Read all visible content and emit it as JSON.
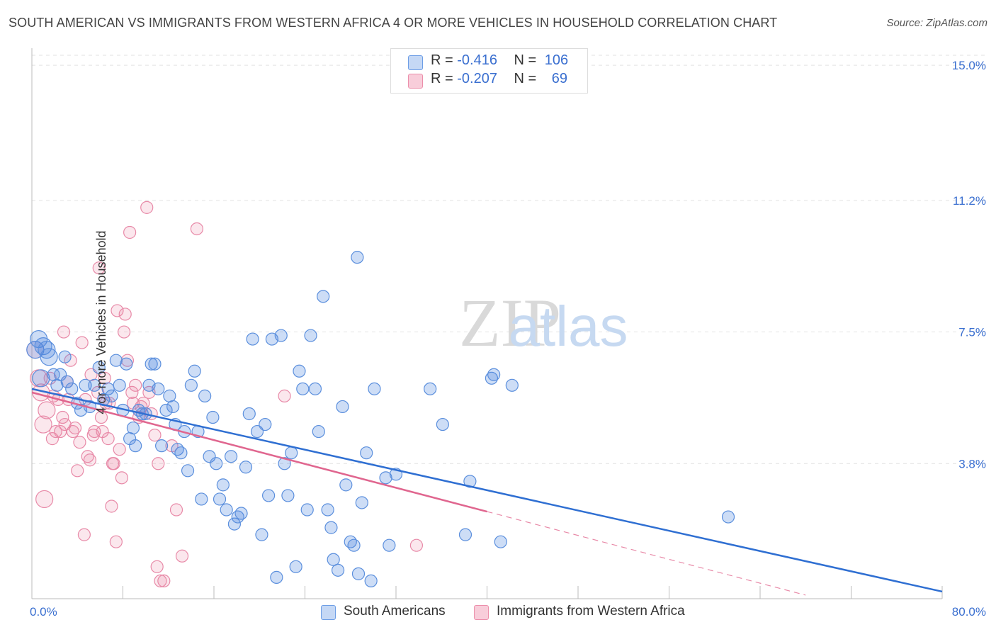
{
  "title": "SOUTH AMERICAN VS IMMIGRANTS FROM WESTERN AFRICA 4 OR MORE VEHICLES IN HOUSEHOLD CORRELATION CHART",
  "source": "Source: ZipAtlas.com",
  "legend": {
    "row1": {
      "r_label": "R =",
      "r_value": "-0.416",
      "n_label": "N =",
      "n_value": "106"
    },
    "row2": {
      "r_label": "R =",
      "r_value": "-0.207",
      "n_label": "N =",
      "n_value": "69"
    }
  },
  "colors": {
    "south_americans": "#4a86e0",
    "western_africa": "#e8799c",
    "accent_text": "#3a6fd0"
  },
  "chart_data": {
    "type": "scatter",
    "title": "SOUTH AMERICAN VS IMMIGRANTS FROM WESTERN AFRICA 4 OR MORE VEHICLES IN HOUSEHOLD CORRELATION CHART",
    "xlabel": "",
    "ylabel": "4 or more Vehicles in Household",
    "xlim": [
      0,
      80
    ],
    "ylim": [
      0,
      15.4
    ],
    "x_tick_labels": [
      "0.0%",
      "80.0%"
    ],
    "y_ticks": [
      3.8,
      7.5,
      11.2,
      15.0
    ],
    "y_tick_labels": [
      "3.8%",
      "7.5%",
      "11.2%",
      "15.0%"
    ],
    "grid": true,
    "legend_position": "top-center",
    "watermark": "ZIPatlas",
    "series": [
      {
        "name": "South Americans",
        "color": "#4a86e0",
        "points": [
          [
            0.3,
            7.0
          ],
          [
            0.6,
            7.3
          ],
          [
            0.8,
            6.2
          ],
          [
            1.0,
            7.1
          ],
          [
            1.3,
            7.0
          ],
          [
            1.5,
            6.8
          ],
          [
            1.9,
            6.3
          ],
          [
            2.2,
            6.0
          ],
          [
            2.5,
            6.3
          ],
          [
            2.9,
            6.8
          ],
          [
            3.1,
            6.1
          ],
          [
            3.5,
            5.9
          ],
          [
            4.0,
            5.5
          ],
          [
            4.3,
            5.3
          ],
          [
            4.7,
            6.0
          ],
          [
            5.1,
            5.4
          ],
          [
            5.5,
            6.0
          ],
          [
            5.9,
            6.5
          ],
          [
            6.3,
            5.6
          ],
          [
            6.7,
            5.9
          ],
          [
            7.0,
            5.7
          ],
          [
            7.4,
            6.7
          ],
          [
            7.7,
            6.0
          ],
          [
            8.0,
            5.3
          ],
          [
            8.3,
            6.6
          ],
          [
            8.6,
            4.5
          ],
          [
            8.9,
            4.8
          ],
          [
            9.1,
            4.3
          ],
          [
            9.4,
            5.3
          ],
          [
            9.7,
            5.2
          ],
          [
            10.0,
            5.2
          ],
          [
            10.3,
            6.0
          ],
          [
            10.5,
            6.6
          ],
          [
            10.8,
            6.6
          ],
          [
            11.1,
            5.9
          ],
          [
            11.4,
            4.3
          ],
          [
            11.8,
            5.3
          ],
          [
            12.1,
            5.7
          ],
          [
            12.4,
            5.4
          ],
          [
            12.6,
            4.9
          ],
          [
            12.8,
            4.2
          ],
          [
            13.1,
            4.1
          ],
          [
            13.4,
            4.7
          ],
          [
            13.7,
            3.6
          ],
          [
            14.0,
            6.0
          ],
          [
            14.3,
            6.4
          ],
          [
            14.6,
            4.7
          ],
          [
            14.9,
            2.8
          ],
          [
            15.2,
            5.7
          ],
          [
            15.6,
            4.0
          ],
          [
            15.9,
            5.1
          ],
          [
            16.2,
            3.8
          ],
          [
            16.5,
            2.8
          ],
          [
            16.8,
            3.2
          ],
          [
            17.1,
            2.5
          ],
          [
            17.5,
            4.0
          ],
          [
            17.8,
            2.1
          ],
          [
            18.1,
            2.3
          ],
          [
            18.4,
            2.4
          ],
          [
            18.8,
            3.7
          ],
          [
            19.1,
            5.2
          ],
          [
            19.4,
            7.3
          ],
          [
            19.8,
            4.7
          ],
          [
            20.2,
            1.8
          ],
          [
            20.5,
            4.9
          ],
          [
            20.8,
            2.9
          ],
          [
            21.1,
            7.3
          ],
          [
            21.5,
            0.6
          ],
          [
            21.9,
            7.4
          ],
          [
            22.2,
            3.8
          ],
          [
            22.5,
            2.9
          ],
          [
            22.8,
            4.1
          ],
          [
            23.2,
            0.9
          ],
          [
            23.5,
            6.4
          ],
          [
            23.8,
            5.9
          ],
          [
            24.2,
            2.5
          ],
          [
            24.5,
            7.4
          ],
          [
            24.9,
            5.9
          ],
          [
            25.2,
            4.7
          ],
          [
            25.6,
            8.5
          ],
          [
            26.0,
            2.5
          ],
          [
            26.3,
            2.0
          ],
          [
            26.5,
            1.1
          ],
          [
            26.9,
            0.8
          ],
          [
            27.3,
            5.4
          ],
          [
            27.6,
            3.2
          ],
          [
            28.0,
            1.6
          ],
          [
            28.3,
            1.5
          ],
          [
            28.7,
            0.7
          ],
          [
            29.0,
            2.7
          ],
          [
            29.4,
            4.1
          ],
          [
            29.8,
            0.5
          ],
          [
            30.1,
            5.9
          ],
          [
            31.1,
            3.4
          ],
          [
            31.4,
            1.5
          ],
          [
            32.0,
            3.5
          ],
          [
            28.6,
            9.6
          ],
          [
            35.0,
            5.9
          ],
          [
            36.1,
            4.9
          ],
          [
            38.1,
            1.8
          ],
          [
            38.5,
            3.3
          ],
          [
            40.4,
            6.2
          ],
          [
            40.6,
            6.3
          ],
          [
            41.2,
            1.6
          ],
          [
            42.2,
            6.0
          ],
          [
            61.2,
            2.3
          ]
        ]
      },
      {
        "name": "Immigrants from Western Africa",
        "color": "#e8799c",
        "points": [
          [
            0.3,
            7.0
          ],
          [
            0.6,
            6.2
          ],
          [
            0.8,
            5.8
          ],
          [
            1.0,
            4.9
          ],
          [
            1.1,
            2.8
          ],
          [
            1.3,
            5.3
          ],
          [
            1.6,
            6.2
          ],
          [
            1.8,
            4.5
          ],
          [
            1.9,
            5.7
          ],
          [
            2.1,
            4.7
          ],
          [
            2.3,
            5.6
          ],
          [
            2.5,
            4.7
          ],
          [
            2.7,
            5.1
          ],
          [
            2.8,
            7.5
          ],
          [
            2.9,
            4.9
          ],
          [
            3.1,
            6.1
          ],
          [
            3.2,
            5.6
          ],
          [
            3.4,
            6.7
          ],
          [
            3.6,
            4.7
          ],
          [
            3.8,
            4.8
          ],
          [
            4.0,
            3.6
          ],
          [
            4.2,
            4.4
          ],
          [
            4.4,
            7.2
          ],
          [
            4.6,
            1.8
          ],
          [
            4.7,
            5.6
          ],
          [
            4.9,
            4.0
          ],
          [
            5.1,
            3.9
          ],
          [
            5.2,
            6.3
          ],
          [
            5.4,
            4.6
          ],
          [
            5.5,
            4.7
          ],
          [
            5.8,
            5.8
          ],
          [
            5.9,
            9.3
          ],
          [
            6.1,
            5.1
          ],
          [
            6.2,
            4.7
          ],
          [
            6.4,
            6.2
          ],
          [
            6.5,
            5.5
          ],
          [
            6.7,
            4.5
          ],
          [
            6.8,
            5.5
          ],
          [
            7.0,
            2.6
          ],
          [
            7.1,
            3.8
          ],
          [
            7.2,
            3.8
          ],
          [
            7.4,
            1.6
          ],
          [
            7.5,
            8.1
          ],
          [
            7.7,
            4.2
          ],
          [
            7.9,
            3.4
          ],
          [
            8.1,
            7.5
          ],
          [
            8.2,
            8.0
          ],
          [
            8.4,
            6.7
          ],
          [
            8.6,
            10.3
          ],
          [
            8.8,
            5.8
          ],
          [
            8.9,
            5.5
          ],
          [
            9.1,
            6.0
          ],
          [
            9.4,
            5.1
          ],
          [
            9.6,
            5.4
          ],
          [
            9.8,
            5.5
          ],
          [
            10.1,
            11.0
          ],
          [
            10.3,
            5.8
          ],
          [
            10.5,
            5.2
          ],
          [
            10.8,
            4.6
          ],
          [
            11.0,
            0.9
          ],
          [
            11.1,
            3.8
          ],
          [
            11.3,
            0.5
          ],
          [
            11.6,
            0.5
          ],
          [
            12.3,
            4.3
          ],
          [
            12.7,
            2.5
          ],
          [
            13.2,
            1.2
          ],
          [
            14.5,
            10.4
          ],
          [
            22.2,
            5.7
          ],
          [
            33.8,
            1.5
          ]
        ]
      }
    ],
    "trend_lines": [
      {
        "series": "South Americans",
        "x": [
          0,
          80
        ],
        "y": [
          5.9,
          0.2
        ]
      },
      {
        "series": "Immigrants from Western Africa",
        "x": [
          0,
          40
        ],
        "y": [
          5.8,
          2.45
        ],
        "dashed_extension_to": [
          68,
          0.1
        ]
      }
    ]
  },
  "bottom_legend": {
    "item1": "South Americans",
    "item2": "Immigrants from Western Africa"
  }
}
